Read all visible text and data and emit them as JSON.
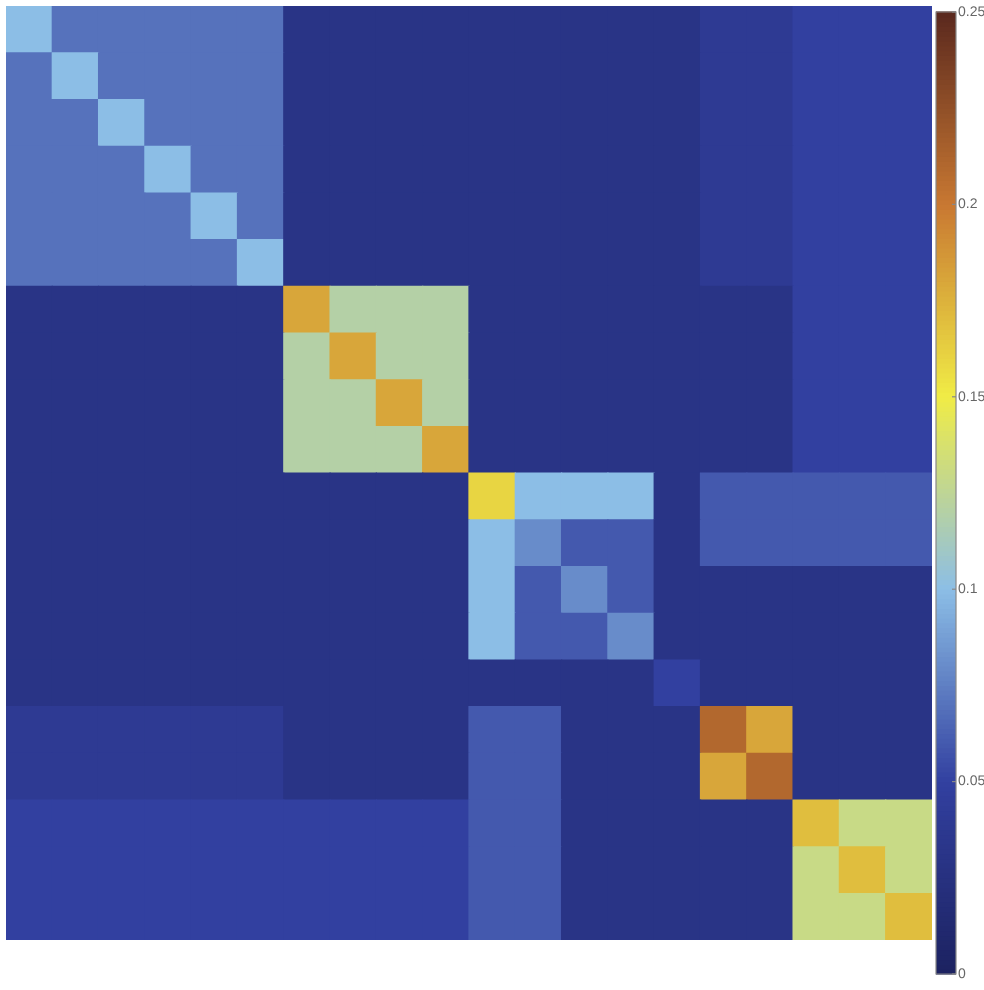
{
  "chart_data": {
    "type": "heatmap",
    "categories": [
      null,
      null,
      null,
      null,
      null,
      null,
      null,
      null,
      null,
      null,
      null,
      null,
      null,
      null,
      null,
      null,
      null,
      null,
      null,
      null
    ],
    "y_categories": [
      null,
      null,
      null,
      null,
      null,
      null,
      null,
      null,
      null,
      null,
      null,
      null,
      null,
      null,
      null,
      null,
      null,
      null,
      null,
      null
    ],
    "cells": [
      [
        0.1,
        0.07,
        0.07,
        0.07,
        0.07,
        0.07,
        0.03,
        0.03,
        0.03,
        0.03,
        0.03,
        0.03,
        0.03,
        0.03,
        0.03,
        0.04,
        0.04,
        0.05,
        0.05,
        0.05
      ],
      [
        0.07,
        0.1,
        0.07,
        0.07,
        0.07,
        0.07,
        0.03,
        0.03,
        0.03,
        0.03,
        0.03,
        0.03,
        0.03,
        0.03,
        0.03,
        0.04,
        0.04,
        0.05,
        0.05,
        0.05
      ],
      [
        0.07,
        0.07,
        0.1,
        0.07,
        0.07,
        0.07,
        0.03,
        0.03,
        0.03,
        0.03,
        0.03,
        0.03,
        0.03,
        0.03,
        0.03,
        0.04,
        0.04,
        0.05,
        0.05,
        0.05
      ],
      [
        0.07,
        0.07,
        0.07,
        0.1,
        0.07,
        0.07,
        0.03,
        0.03,
        0.03,
        0.03,
        0.03,
        0.03,
        0.03,
        0.03,
        0.03,
        0.04,
        0.04,
        0.05,
        0.05,
        0.05
      ],
      [
        0.07,
        0.07,
        0.07,
        0.07,
        0.1,
        0.07,
        0.03,
        0.03,
        0.03,
        0.03,
        0.03,
        0.03,
        0.03,
        0.03,
        0.03,
        0.04,
        0.04,
        0.05,
        0.05,
        0.05
      ],
      [
        0.07,
        0.07,
        0.07,
        0.07,
        0.07,
        0.1,
        0.03,
        0.03,
        0.03,
        0.03,
        0.03,
        0.03,
        0.03,
        0.03,
        0.03,
        0.04,
        0.04,
        0.05,
        0.05,
        0.05
      ],
      [
        0.03,
        0.03,
        0.03,
        0.03,
        0.03,
        0.03,
        0.18,
        0.12,
        0.12,
        0.12,
        0.03,
        0.03,
        0.03,
        0.03,
        0.03,
        0.03,
        0.03,
        0.05,
        0.05,
        0.05
      ],
      [
        0.03,
        0.03,
        0.03,
        0.03,
        0.03,
        0.03,
        0.12,
        0.18,
        0.12,
        0.12,
        0.03,
        0.03,
        0.03,
        0.03,
        0.03,
        0.03,
        0.03,
        0.05,
        0.05,
        0.05
      ],
      [
        0.03,
        0.03,
        0.03,
        0.03,
        0.03,
        0.03,
        0.12,
        0.12,
        0.18,
        0.12,
        0.03,
        0.03,
        0.03,
        0.03,
        0.03,
        0.03,
        0.03,
        0.05,
        0.05,
        0.05
      ],
      [
        0.03,
        0.03,
        0.03,
        0.03,
        0.03,
        0.03,
        0.12,
        0.12,
        0.12,
        0.18,
        0.03,
        0.03,
        0.03,
        0.03,
        0.03,
        0.03,
        0.03,
        0.05,
        0.05,
        0.05
      ],
      [
        0.03,
        0.03,
        0.03,
        0.03,
        0.03,
        0.03,
        0.03,
        0.03,
        0.03,
        0.03,
        0.16,
        0.1,
        0.1,
        0.1,
        0.03,
        0.06,
        0.06,
        0.06,
        0.06,
        0.06
      ],
      [
        0.03,
        0.03,
        0.03,
        0.03,
        0.03,
        0.03,
        0.03,
        0.03,
        0.03,
        0.03,
        0.1,
        0.08,
        0.06,
        0.06,
        0.03,
        0.06,
        0.06,
        0.06,
        0.06,
        0.06
      ],
      [
        0.03,
        0.03,
        0.03,
        0.03,
        0.03,
        0.03,
        0.03,
        0.03,
        0.03,
        0.03,
        0.1,
        0.06,
        0.08,
        0.06,
        0.03,
        0.03,
        0.03,
        0.03,
        0.03,
        0.03
      ],
      [
        0.03,
        0.03,
        0.03,
        0.03,
        0.03,
        0.03,
        0.03,
        0.03,
        0.03,
        0.03,
        0.1,
        0.06,
        0.06,
        0.08,
        0.03,
        0.03,
        0.03,
        0.03,
        0.03,
        0.03
      ],
      [
        0.03,
        0.03,
        0.03,
        0.03,
        0.03,
        0.03,
        0.03,
        0.03,
        0.03,
        0.03,
        0.03,
        0.03,
        0.03,
        0.03,
        0.05,
        0.03,
        0.03,
        0.03,
        0.03,
        0.03
      ],
      [
        0.04,
        0.04,
        0.04,
        0.04,
        0.04,
        0.04,
        0.03,
        0.03,
        0.03,
        0.03,
        0.06,
        0.06,
        0.03,
        0.03,
        0.03,
        0.21,
        0.18,
        0.03,
        0.03,
        0.03
      ],
      [
        0.04,
        0.04,
        0.04,
        0.04,
        0.04,
        0.04,
        0.03,
        0.03,
        0.03,
        0.03,
        0.06,
        0.06,
        0.03,
        0.03,
        0.03,
        0.18,
        0.21,
        0.03,
        0.03,
        0.03
      ],
      [
        0.05,
        0.05,
        0.05,
        0.05,
        0.05,
        0.05,
        0.05,
        0.05,
        0.05,
        0.05,
        0.06,
        0.06,
        0.03,
        0.03,
        0.03,
        0.03,
        0.03,
        0.17,
        0.13,
        0.13
      ],
      [
        0.05,
        0.05,
        0.05,
        0.05,
        0.05,
        0.05,
        0.05,
        0.05,
        0.05,
        0.05,
        0.06,
        0.06,
        0.03,
        0.03,
        0.03,
        0.03,
        0.03,
        0.13,
        0.17,
        0.13
      ],
      [
        0.05,
        0.05,
        0.05,
        0.05,
        0.05,
        0.05,
        0.05,
        0.05,
        0.05,
        0.05,
        0.06,
        0.06,
        0.03,
        0.03,
        0.03,
        0.03,
        0.03,
        0.13,
        0.13,
        0.17
      ]
    ],
    "clim": [
      0,
      0.25
    ],
    "cticks": [
      0,
      0.05,
      0.1,
      0.15,
      0.2,
      0.25
    ]
  }
}
